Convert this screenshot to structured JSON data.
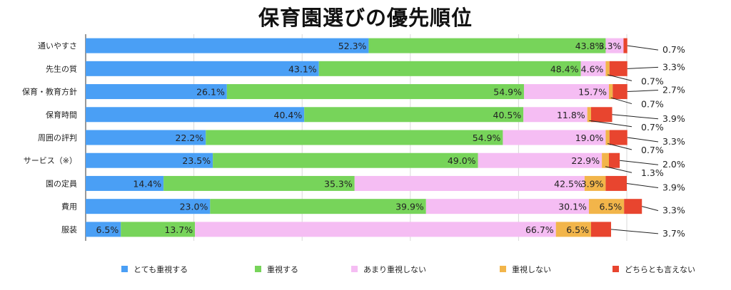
{
  "chart_data": {
    "type": "bar",
    "orientation": "horizontal",
    "stacked": true,
    "title": "保育園選びの優先順位",
    "unit": "%",
    "grid": true,
    "legend_position": "bottom",
    "categories": [
      "通いやすさ",
      "先生の質",
      "保育・教育方針",
      "保育時間",
      "周囲の評判",
      "サービス（※）",
      "園の定員",
      "費用",
      "服装"
    ],
    "series": [
      {
        "name": "とても重視する",
        "color": "#4a9ff5",
        "values": [
          52.3,
          43.1,
          26.1,
          40.4,
          22.2,
          23.5,
          14.4,
          23.0,
          6.5
        ],
        "labels": [
          "52.3%",
          "43.1%",
          "26.1%",
          "40.4%",
          "22.2%",
          "23.5%",
          "14.4%",
          "23.0%",
          "6.5%"
        ]
      },
      {
        "name": "重視する",
        "color": "#77d45a",
        "values": [
          43.8,
          48.4,
          54.9,
          40.5,
          54.9,
          49.0,
          35.3,
          39.9,
          13.7
        ],
        "labels": [
          "43.8%",
          "48.4%",
          "54.9%",
          "40.5%",
          "54.9%",
          "49.0%",
          "35.3%",
          "39.9%",
          "13.7%"
        ]
      },
      {
        "name": "あまり重視しない",
        "color": "#f5bdf3",
        "values": [
          3.3,
          4.6,
          15.7,
          11.8,
          19.0,
          22.9,
          42.5,
          30.1,
          66.7
        ],
        "labels": [
          "3.3%",
          "4.6%",
          "15.7%",
          "11.8%",
          "19.0%",
          "22.9%",
          "42.5%",
          "30.1%",
          "66.7%"
        ]
      },
      {
        "name": "重視しない",
        "color": "#f2b54a",
        "values": [
          0.0,
          0.7,
          0.7,
          0.7,
          0.7,
          1.3,
          3.9,
          6.5,
          6.5
        ],
        "labels": [
          "",
          "0.7%",
          "0.7%",
          "0.7%",
          "0.7%",
          "1.3%",
          "3.9%",
          "6.5%",
          "6.5%"
        ]
      },
      {
        "name": "どちらとも言えない",
        "color": "#e8452f",
        "values": [
          0.7,
          3.3,
          2.7,
          3.9,
          3.3,
          2.0,
          3.9,
          3.3,
          3.7
        ],
        "labels": [
          "0.7%",
          "3.3%",
          "2.7%",
          "3.9%",
          "3.3%",
          "2.0%",
          "3.9%",
          "3.3%",
          "3.7%"
        ]
      }
    ],
    "xlim": [
      0,
      100
    ]
  }
}
